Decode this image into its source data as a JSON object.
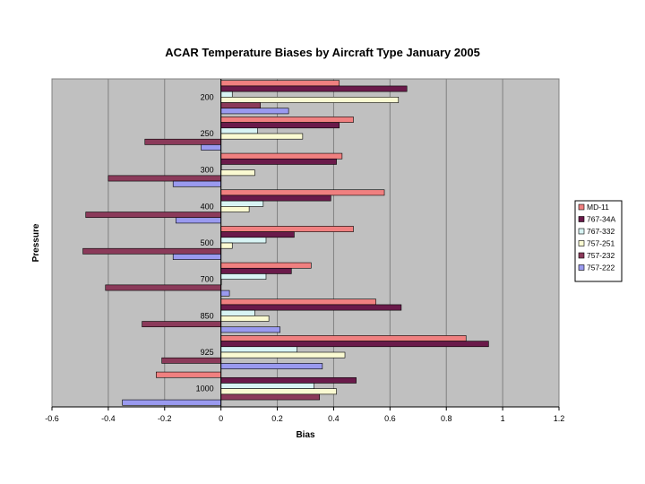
{
  "chart_data": {
    "type": "bar",
    "orientation": "horizontal",
    "title": "ACAR Temperature Biases by Aircraft Type January 2005",
    "xlabel": "Bias",
    "ylabel": "Pressure",
    "xlim": [
      -0.6,
      1.2
    ],
    "xticks": [
      "-0.6",
      "-0.4",
      "-0.2",
      "0",
      "0.2",
      "0.4",
      "0.6",
      "0.8",
      "1",
      "1.2"
    ],
    "grid": true,
    "legend_position": "right",
    "categories": [
      "200",
      "250",
      "300",
      "400",
      "500",
      "700",
      "850",
      "925",
      "1000"
    ],
    "series": [
      {
        "name": "MD-11",
        "color": "#f08080",
        "values": [
          0.42,
          0.47,
          0.43,
          0.58,
          0.47,
          0.32,
          0.55,
          0.87,
          -0.23
        ]
      },
      {
        "name": "767-34A",
        "color": "#6a1a4a",
        "values": [
          0.66,
          0.42,
          0.41,
          0.39,
          0.26,
          0.25,
          0.64,
          0.95,
          0.48
        ]
      },
      {
        "name": "767-332",
        "color": "#d8f4f4",
        "values": [
          0.04,
          0.13,
          -0.0,
          0.15,
          0.16,
          0.16,
          0.12,
          0.27,
          0.33
        ]
      },
      {
        "name": "757-251",
        "color": "#fafad2",
        "values": [
          0.63,
          0.29,
          0.12,
          0.1,
          0.04,
          0.0,
          0.17,
          0.44,
          0.41
        ]
      },
      {
        "name": "757-232",
        "color": "#8b3a5a",
        "values": [
          0.14,
          -0.27,
          -0.4,
          -0.48,
          -0.49,
          -0.41,
          -0.28,
          -0.21,
          0.35
        ]
      },
      {
        "name": "757-222",
        "color": "#9a9aef",
        "values": [
          0.24,
          -0.07,
          -0.17,
          -0.16,
          -0.17,
          0.03,
          0.21,
          0.36,
          -0.35
        ]
      }
    ]
  }
}
